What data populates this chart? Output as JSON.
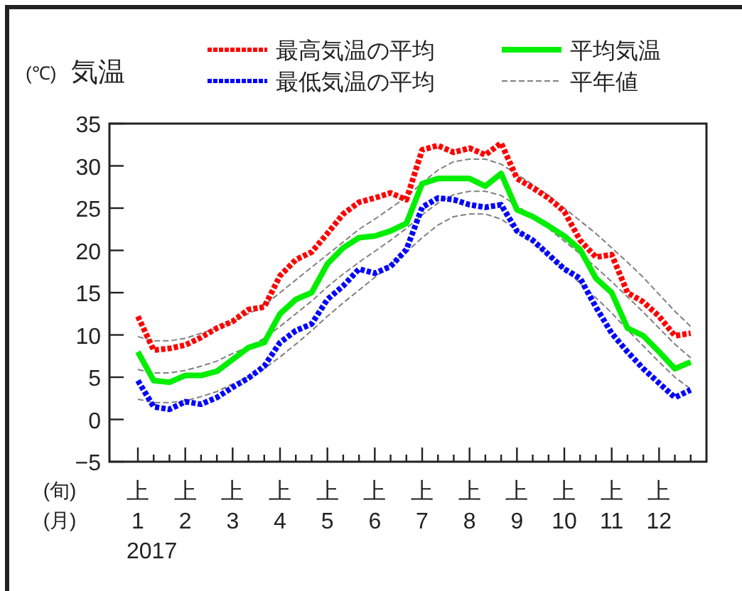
{
  "chart_data": {
    "type": "line",
    "title": "気温",
    "ylabel": "(℃)",
    "xlabel": "(旬)\n(月)",
    "categories": [
      "上\n1",
      null,
      null,
      "上\n2",
      null,
      null,
      "上\n3",
      null,
      null,
      "上\n4",
      null,
      null,
      "上\n5",
      null,
      null,
      "上\n6",
      null,
      null,
      "上\n7",
      null,
      null,
      "上\n8",
      null,
      null,
      "上\n9",
      null,
      null,
      "上\n10",
      null,
      null,
      "上\n11",
      null,
      null,
      "上\n12",
      null,
      null
    ],
    "annotations": [
      "2017"
    ],
    "ylim": [
      -5,
      35
    ],
    "yticks": [
      -5,
      0,
      5,
      10,
      15,
      20,
      25,
      30,
      35
    ],
    "grid": false,
    "legend": "top",
    "marker": "none",
    "series": [
      {
        "name": "平年値",
        "color": "#808080",
        "line_style": "dashed",
        "values": [
          9.8,
          9.3,
          9.3,
          9.6,
          10.2,
          10.8,
          11.6,
          12.5,
          13.5,
          15.0,
          16.5,
          18.0,
          19.5,
          21.0,
          22.5,
          23.7,
          25.0,
          26.3,
          28.0,
          29.5,
          30.5,
          30.8,
          30.8,
          30.2,
          29.0,
          27.8,
          26.5,
          25.0,
          23.5,
          22.0,
          20.3,
          18.6,
          16.8,
          14.8,
          12.8,
          11.0
        ]
      },
      {
        "color": "#808080",
        "line_style": "dashed",
        "values": [
          5.9,
          5.5,
          5.5,
          5.8,
          6.3,
          6.9,
          7.8,
          8.6,
          9.6,
          11.0,
          12.5,
          14.0,
          15.7,
          17.2,
          18.6,
          19.9,
          21.2,
          22.6,
          24.2,
          25.6,
          26.6,
          27.0,
          27.0,
          26.5,
          25.3,
          24.0,
          22.6,
          21.1,
          19.6,
          18.0,
          16.3,
          14.5,
          12.7,
          10.8,
          8.9,
          7.3
        ]
      },
      {
        "color": "#808080",
        "line_style": "dashed",
        "values": [
          2.4,
          2.0,
          2.0,
          2.2,
          2.7,
          3.3,
          4.2,
          5.0,
          6.0,
          7.4,
          8.9,
          10.5,
          12.2,
          13.8,
          15.3,
          16.8,
          18.3,
          19.8,
          21.5,
          23.0,
          24.0,
          24.3,
          24.3,
          23.7,
          22.4,
          21.0,
          19.4,
          17.8,
          16.1,
          14.4,
          12.6,
          10.6,
          8.7,
          6.8,
          5.0,
          3.6
        ]
      },
      {
        "name": "最高気温の平均",
        "color": "#ff0000",
        "line_style": "dotted",
        "values": [
          12.2,
          8.2,
          8.4,
          8.8,
          9.7,
          10.8,
          11.6,
          13.0,
          13.3,
          17.0,
          18.9,
          19.8,
          22.0,
          24.3,
          25.7,
          26.2,
          26.8,
          26.0,
          31.9,
          32.4,
          31.6,
          32.1,
          31.3,
          32.7,
          28.5,
          27.4,
          26.2,
          24.6,
          21.2,
          19.2,
          19.5,
          15.0,
          13.9,
          12.2,
          9.9,
          10.2
        ]
      },
      {
        "name": "平均気温",
        "color": "#00ee00",
        "line_style": "solid",
        "values": [
          8.0,
          4.6,
          4.4,
          5.2,
          5.2,
          5.7,
          7.1,
          8.5,
          9.1,
          12.5,
          14.2,
          15.0,
          18.4,
          20.3,
          21.5,
          21.7,
          22.3,
          23.2,
          27.9,
          28.5,
          28.5,
          28.5,
          27.6,
          29.1,
          24.8,
          24.0,
          22.9,
          21.7,
          20.1,
          16.7,
          15.0,
          10.8,
          9.9,
          8.0,
          6.0,
          6.8
        ]
      },
      {
        "name": "最低気温の平均",
        "color": "#0000ff",
        "line_style": "dotted",
        "values": [
          4.6,
          1.5,
          1.2,
          2.1,
          1.8,
          2.6,
          3.8,
          4.9,
          6.3,
          9.1,
          10.5,
          11.3,
          14.2,
          15.8,
          17.8,
          17.3,
          18.1,
          20.1,
          25.1,
          26.2,
          26.0,
          25.4,
          25.1,
          25.4,
          22.3,
          21.2,
          19.5,
          17.8,
          16.7,
          13.3,
          10.2,
          8.0,
          6.0,
          4.3,
          2.6,
          3.5
        ]
      }
    ]
  }
}
